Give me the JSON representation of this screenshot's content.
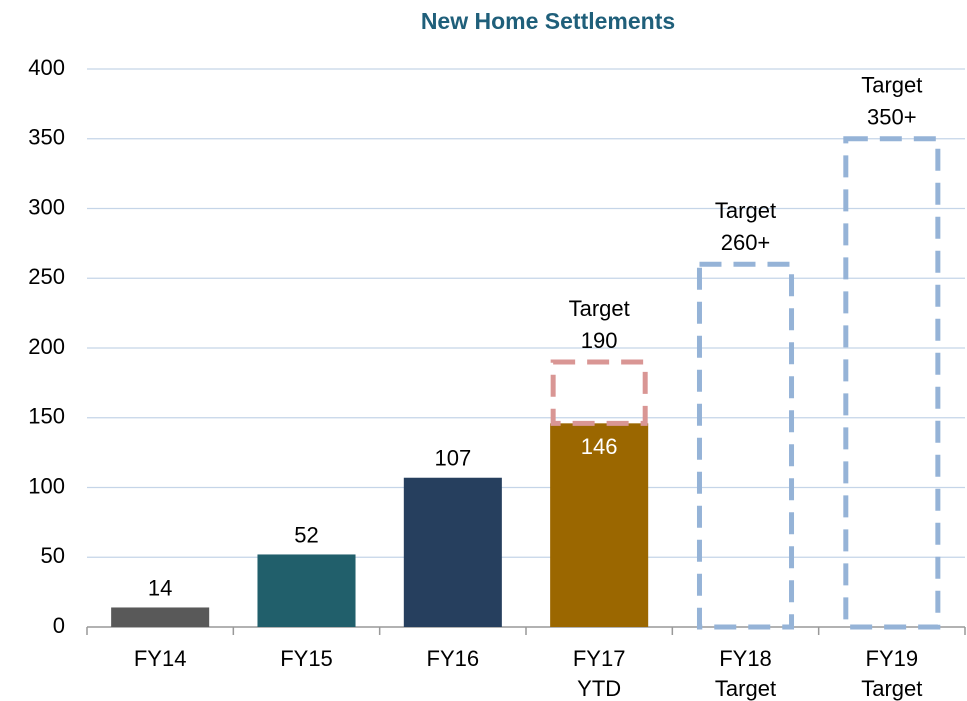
{
  "chart_data": {
    "type": "bar",
    "title": "New Home Settlements",
    "categories": [
      [
        "FY14"
      ],
      [
        "FY15"
      ],
      [
        "FY16"
      ],
      [
        "FY17",
        "YTD"
      ],
      [
        "FY18",
        "Target"
      ],
      [
        "FY19",
        "Target"
      ]
    ],
    "series": [
      {
        "values": [
          14,
          52,
          107,
          146,
          null,
          null
        ],
        "colors": [
          "#595959",
          "#215f6b",
          "#263f5e",
          "#9b6700",
          null,
          null
        ]
      },
      {
        "values": [
          null,
          null,
          null,
          190,
          260,
          350
        ],
        "value_labels": [
          null,
          null,
          null,
          [
            "Target",
            "190"
          ],
          [
            "Target",
            "260+"
          ],
          [
            "Target",
            "350+"
          ]
        ],
        "colors": [
          null,
          null,
          null,
          "#d99694",
          "#95b3d7",
          "#95b3d7"
        ],
        "dashed": true
      }
    ],
    "ylim": [
      0,
      400
    ],
    "yticks": [
      0,
      50,
      100,
      150,
      200,
      250,
      300,
      350,
      400
    ],
    "grid": true
  }
}
